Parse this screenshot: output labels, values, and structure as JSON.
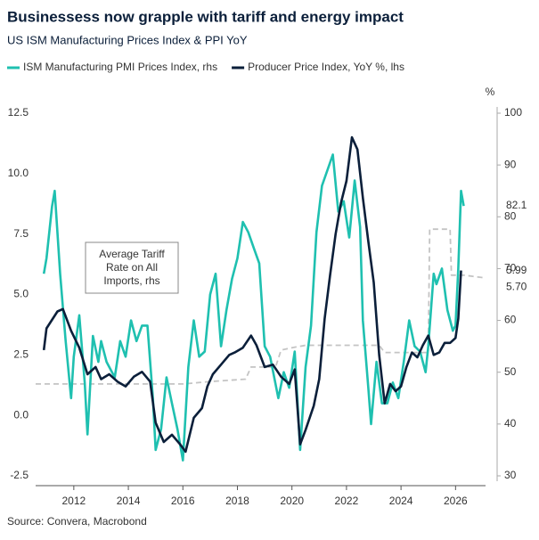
{
  "chart_data": {
    "type": "line",
    "title": "Businessess now grapple with tariff and energy impact",
    "subtitle": "US ISM Manufacturing Prices Index & PPI YoY",
    "source": "Source: Convera, Macrobond",
    "y2_unit": "%",
    "xlim": [
      2010.6,
      2027.1
    ],
    "xticks": [
      2012,
      2014,
      2016,
      2018,
      2020,
      2022,
      2024,
      2026
    ],
    "ylim": [
      -2.5,
      12.5
    ],
    "yticks": [
      -2.5,
      {
        "value": 0,
        "label": "0.0"
      },
      2.5,
      {
        "value": 5,
        "label": "5.0"
      },
      7.5,
      {
        "value": 10,
        "label": "10.0"
      },
      12.5
    ],
    "y2lim": [
      30,
      100
    ],
    "y2ticks": [
      30,
      40,
      50,
      60,
      70,
      80,
      90,
      100
    ],
    "series": [
      {
        "name": "ISM Manufacturing PMI Prices Index, rhs",
        "color": "#1fc0b0",
        "axis": "y2",
        "x": [
          2010.9,
          2011.0,
          2011.2,
          2011.3,
          2011.5,
          2011.7,
          2011.9,
          2012.0,
          2012.2,
          2012.4,
          2012.5,
          2012.7,
          2012.9,
          2013.0,
          2013.2,
          2013.5,
          2013.7,
          2013.9,
          2014.1,
          2014.3,
          2014.5,
          2014.7,
          2014.9,
          2015.0,
          2015.2,
          2015.4,
          2015.6,
          2015.8,
          2016.0,
          2016.2,
          2016.4,
          2016.6,
          2016.8,
          2017.0,
          2017.2,
          2017.4,
          2017.6,
          2017.8,
          2018.0,
          2018.2,
          2018.4,
          2018.6,
          2018.8,
          2019.0,
          2019.2,
          2019.5,
          2019.7,
          2019.9,
          2020.1,
          2020.3,
          2020.5,
          2020.7,
          2020.9,
          2021.1,
          2021.3,
          2021.5,
          2021.7,
          2021.9,
          2022.1,
          2022.3,
          2022.5,
          2022.6,
          2022.8,
          2022.9,
          2023.1,
          2023.3,
          2023.5,
          2023.7,
          2023.9,
          2024.1,
          2024.3,
          2024.5,
          2024.7,
          2024.9,
          2025.0,
          2025.2,
          2025.3,
          2025.5,
          2025.7,
          2025.9,
          2026.0,
          2026.1,
          2026.2,
          2026.3
        ],
        "values": [
          69,
          72,
          82,
          85,
          69,
          56,
          45,
          53,
          61,
          48,
          38,
          57,
          52,
          56,
          52,
          49,
          56,
          53,
          60,
          56,
          59,
          59,
          45,
          35,
          39,
          49,
          44,
          39,
          33,
          51,
          60,
          53,
          54,
          65,
          69,
          55,
          62,
          68,
          72,
          79,
          77,
          74,
          71,
          55,
          53,
          45,
          50,
          47,
          54,
          35,
          51,
          59,
          77,
          86,
          89,
          92,
          81,
          83,
          76,
          87,
          78,
          60,
          47,
          40,
          52,
          44,
          44,
          48,
          45,
          52,
          60,
          55,
          54,
          50,
          55,
          69,
          67,
          70,
          62,
          58,
          59,
          70,
          85,
          82.1
        ]
      },
      {
        "name": "Producer Price Index, YoY %, lhs",
        "color": "#0b1f3a",
        "x": [
          2010.9,
          2011.0,
          2011.4,
          2011.6,
          2011.9,
          2012.2,
          2012.5,
          2012.8,
          2013.0,
          2013.3,
          2013.6,
          2013.9,
          2014.2,
          2014.5,
          2014.8,
          2015.0,
          2015.3,
          2015.6,
          2015.9,
          2016.1,
          2016.4,
          2016.7,
          2016.9,
          2017.1,
          2017.4,
          2017.7,
          2017.9,
          2018.2,
          2018.5,
          2018.7,
          2019.0,
          2019.3,
          2019.6,
          2019.9,
          2020.1,
          2020.3,
          2020.5,
          2020.8,
          2021.0,
          2021.2,
          2021.4,
          2021.6,
          2021.8,
          2022.0,
          2022.2,
          2022.4,
          2022.6,
          2022.8,
          2023.0,
          2023.2,
          2023.4,
          2023.6,
          2023.8,
          2024.0,
          2024.2,
          2024.4,
          2024.6,
          2024.8,
          2025.0,
          2025.2,
          2025.4,
          2025.6,
          2025.8,
          2026.0,
          2026.1,
          2026.2
        ],
        "values": [
          2.7,
          3.6,
          4.3,
          4.4,
          3.5,
          2.8,
          1.7,
          2.0,
          1.5,
          1.7,
          1.4,
          1.2,
          1.6,
          1.8,
          1.4,
          -0.3,
          -1.1,
          -0.8,
          -1.2,
          -1.5,
          -0.1,
          0.3,
          1.2,
          1.7,
          2.1,
          2.5,
          2.6,
          2.8,
          3.3,
          2.9,
          2.0,
          2.1,
          1.6,
          1.3,
          1.9,
          -1.2,
          -0.6,
          0.4,
          1.5,
          4.0,
          5.8,
          7.5,
          8.8,
          9.7,
          11.5,
          11.0,
          9.0,
          7.2,
          5.5,
          2.5,
          0.5,
          1.3,
          1.0,
          1.2,
          2.0,
          2.6,
          2.4,
          2.9,
          3.3,
          2.5,
          2.6,
          3.0,
          3.0,
          3.2,
          4.0,
          5.99
        ]
      },
      {
        "name": "Average Tariff Rate on All Imports, rhs",
        "color": "#c4c4c4",
        "dashed": true,
        "legend": false,
        "x": [
          2010.6,
          2016.0,
          2017.0,
          2018.3,
          2018.5,
          2019.4,
          2019.6,
          2020.0,
          2020.5,
          2023.2,
          2023.4,
          2025.0,
          2025.05,
          2025.8,
          2025.85,
          2026.3,
          2027.0
        ],
        "values": [
          1.3,
          1.3,
          1.4,
          1.5,
          2.0,
          2.0,
          2.7,
          2.8,
          2.9,
          2.9,
          2.6,
          2.6,
          7.7,
          7.7,
          5.8,
          5.8,
          5.7
        ]
      }
    ],
    "annotations": [
      {
        "text": "82.1",
        "color": "#999999",
        "y2": 82.1
      },
      {
        "text": "5.99",
        "color": "#0b1f3a",
        "y": 5.99
      },
      {
        "text": "5.70",
        "color": "#1fc0b0",
        "y": 5.3
      }
    ],
    "box_label": [
      "Average Tariff",
      "Rate on All",
      "Imports, rhs"
    ]
  }
}
